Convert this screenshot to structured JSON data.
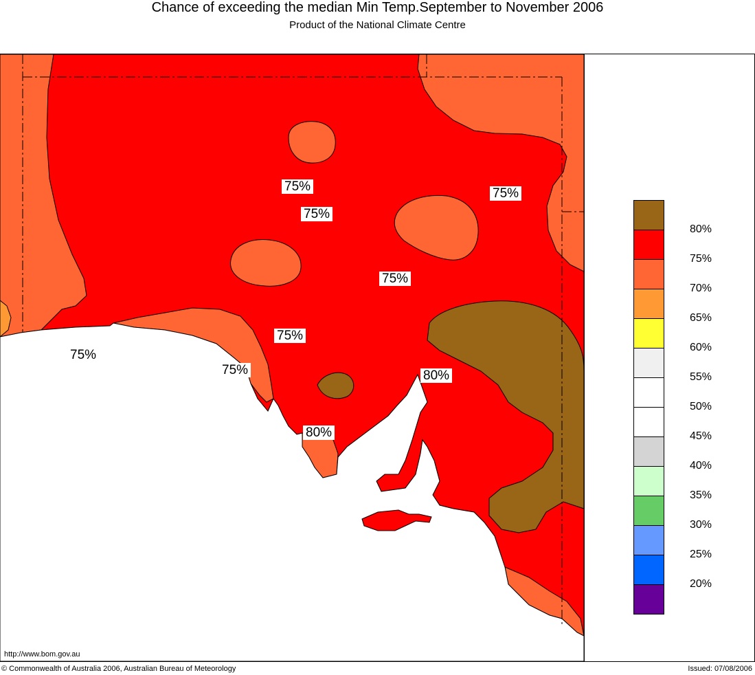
{
  "header": {
    "title": "Chance of exceeding the median Min Temp.September to November 2006",
    "subtitle": "Product of the National Climate Centre"
  },
  "map": {
    "colors": {
      "c80": "#996517",
      "c75": "#ff0000",
      "c70": "#ff6633",
      "c65": "#ff9933",
      "sea": "#ffffff"
    },
    "labels": [
      "75%",
      "75%",
      "75%",
      "75%",
      "75%",
      "75%",
      "75%",
      "80%",
      "80%"
    ]
  },
  "legend": {
    "items": [
      {
        "color": "#996517"
      },
      {
        "color": "#ff0000"
      },
      {
        "color": "#ff6633"
      },
      {
        "color": "#ff9933"
      },
      {
        "color": "#ffff33"
      },
      {
        "color": "#f0f0f0"
      },
      {
        "color": "#ffffff"
      },
      {
        "color": "#ffffff"
      },
      {
        "color": "#d4d4d4"
      },
      {
        "color": "#ccffcc"
      },
      {
        "color": "#66cc66"
      },
      {
        "color": "#6699ff"
      },
      {
        "color": "#0066ff"
      },
      {
        "color": "#660099"
      }
    ],
    "labels": [
      "80%",
      "75%",
      "70%",
      "65%",
      "60%",
      "55%",
      "50%",
      "45%",
      "40%",
      "35%",
      "30%",
      "25%",
      "20%"
    ]
  },
  "footer": {
    "url": "http://www.bom.gov.au",
    "copyright": "© Commonwealth of Australia 2006, Australian Bureau of Meteorology",
    "issued": "Issued: 07/08/2006"
  }
}
